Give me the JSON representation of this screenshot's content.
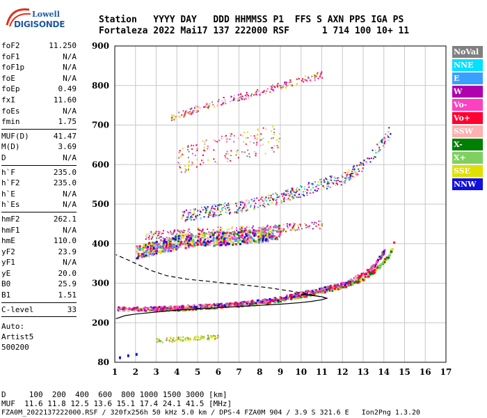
{
  "logo": {
    "top": "Lowell",
    "bottom": "DIGISONDE"
  },
  "header": {
    "line1": "Station   YYYY DAY   DDD HHMMSS P1  FFS S AXN PPS IGA PS",
    "line2": "Fortaleza 2022 Mai17 137 222000 RSF      1 714 100 10+ 11"
  },
  "params": {
    "g1": [
      {
        "k": "foF2",
        "v": "11.250"
      },
      {
        "k": "foF1",
        "v": "N/A"
      },
      {
        "k": "foF1p",
        "v": "N/A"
      },
      {
        "k": "foE",
        "v": "N/A"
      },
      {
        "k": "foEp",
        "v": "0.49"
      },
      {
        "k": "fxI",
        "v": "11.60"
      },
      {
        "k": "foEs",
        "v": "N/A"
      },
      {
        "k": "fmin",
        "v": "1.75"
      }
    ],
    "g2": [
      {
        "k": "MUF(D)",
        "v": "41.47"
      },
      {
        "k": "M(D)",
        "v": "3.69"
      },
      {
        "k": "D",
        "v": "N/A"
      }
    ],
    "g3": [
      {
        "k": "h`F",
        "v": "235.0"
      },
      {
        "k": "h`F2",
        "v": "235.0"
      },
      {
        "k": "h`E",
        "v": "N/A"
      },
      {
        "k": "h`Es",
        "v": "N/A"
      }
    ],
    "g4": [
      {
        "k": "hmF2",
        "v": "262.1"
      },
      {
        "k": "hmF1",
        "v": "N/A"
      },
      {
        "k": "hmE",
        "v": "110.0"
      },
      {
        "k": "yF2",
        "v": "23.9"
      },
      {
        "k": "yF1",
        "v": "N/A"
      },
      {
        "k": "yE",
        "v": "20.0"
      },
      {
        "k": "B0",
        "v": "25.9"
      },
      {
        "k": "B1",
        "v": "1.51"
      }
    ],
    "g5": [
      {
        "k": "C-level",
        "v": "33"
      }
    ],
    "auto": [
      "Auto:",
      "Artist5",
      "500200"
    ]
  },
  "legend": [
    {
      "label": "NoVal",
      "color": "#808080"
    },
    {
      "label": "NNE",
      "color": "#00e0ff"
    },
    {
      "label": "E",
      "color": "#3aa0ff"
    },
    {
      "label": "W",
      "color": "#b000b0"
    },
    {
      "label": "Vo-",
      "color": "#ff40c0"
    },
    {
      "label": "Vo+",
      "color": "#ff0030"
    },
    {
      "label": "SSW",
      "color": "#ffb0b0"
    },
    {
      "label": "X-",
      "color": "#008000"
    },
    {
      "label": "X+",
      "color": "#80d060"
    },
    {
      "label": "SSE",
      "color": "#e0e000"
    },
    {
      "label": "NNW",
      "color": "#1010e0"
    }
  ],
  "chart_data": {
    "type": "scatter",
    "x_ticks": [
      "1",
      "2",
      "3",
      "4",
      "5",
      "6",
      "7",
      "8",
      "9",
      "10",
      "11",
      "12",
      "13",
      "14",
      "15",
      "16",
      "17"
    ],
    "y_ticks": [
      "80",
      "200",
      "300",
      "400",
      "500",
      "600",
      "700",
      "800",
      "900"
    ],
    "xlim": [
      1,
      17
    ],
    "ylim": [
      80,
      900
    ],
    "grid": true,
    "trace_o": [
      [
        1.1,
        237
      ],
      [
        2,
        237
      ],
      [
        3,
        238
      ],
      [
        4,
        240
      ],
      [
        5,
        243
      ],
      [
        6,
        246
      ],
      [
        7,
        250
      ],
      [
        8,
        256
      ],
      [
        9,
        264
      ],
      [
        10,
        276
      ],
      [
        11,
        287
      ],
      [
        12,
        300
      ],
      [
        13,
        325
      ],
      [
        13.5,
        347
      ],
      [
        14,
        385
      ]
    ],
    "trace_x": [
      [
        2.1,
        235
      ],
      [
        3,
        236
      ],
      [
        4,
        237
      ],
      [
        5,
        240
      ],
      [
        6,
        243
      ],
      [
        7,
        247
      ],
      [
        8,
        252
      ],
      [
        9,
        260
      ],
      [
        10,
        270
      ],
      [
        11,
        282
      ],
      [
        12,
        294
      ],
      [
        13,
        313
      ],
      [
        13.6,
        337
      ],
      [
        14.2,
        370
      ],
      [
        14.5,
        410
      ]
    ],
    "echo2_o": [
      [
        2,
        380
      ],
      [
        3,
        392
      ],
      [
        4,
        405
      ],
      [
        5,
        412
      ],
      [
        6,
        414
      ],
      [
        7,
        418
      ],
      [
        8,
        423
      ],
      [
        9,
        432
      ]
    ],
    "echo2_x": [
      [
        4.2,
        470
      ],
      [
        5,
        478
      ],
      [
        6,
        488
      ],
      [
        7,
        495
      ],
      [
        8,
        505
      ],
      [
        9,
        518
      ],
      [
        10,
        535
      ],
      [
        11,
        552
      ],
      [
        12,
        566
      ],
      [
        13,
        600
      ],
      [
        14,
        660
      ],
      [
        14.3,
        690
      ]
    ],
    "echo3": [
      [
        4,
        612
      ],
      [
        5,
        628
      ],
      [
        6,
        640
      ],
      [
        7,
        650
      ],
      [
        8,
        660
      ],
      [
        9,
        670
      ]
    ],
    "echo4": [
      [
        3.7,
        718
      ],
      [
        5,
        745
      ],
      [
        6,
        760
      ],
      [
        7,
        772
      ],
      [
        8,
        785
      ],
      [
        9,
        800
      ],
      [
        10,
        815
      ],
      [
        11,
        830
      ]
    ],
    "spread": [
      [
        2.4,
        422
      ],
      [
        4,
        428
      ],
      [
        5,
        432
      ],
      [
        6,
        434
      ],
      [
        7,
        436
      ],
      [
        8,
        438
      ],
      [
        9,
        440
      ],
      [
        10,
        446
      ],
      [
        11,
        450
      ]
    ],
    "es": [
      [
        3,
        148
      ],
      [
        4,
        152
      ],
      [
        5,
        155
      ],
      [
        6,
        158
      ]
    ],
    "low": [
      [
        1.2,
        98
      ],
      [
        1.6,
        104
      ],
      [
        2,
        108
      ]
    ],
    "profile_solid": [
      [
        1.05,
        210
      ],
      [
        1.5,
        218
      ],
      [
        2,
        222
      ],
      [
        3,
        227
      ],
      [
        4,
        232
      ],
      [
        5,
        235
      ],
      [
        6,
        238
      ],
      [
        7,
        241
      ],
      [
        8,
        244
      ],
      [
        9,
        247
      ],
      [
        10,
        251
      ],
      [
        10.5,
        254
      ],
      [
        11,
        258
      ],
      [
        11.25,
        262
      ],
      [
        11,
        266
      ],
      [
        10.5,
        269
      ],
      [
        10,
        272
      ]
    ],
    "profile_dashed": [
      [
        11.25,
        262
      ],
      [
        10.5,
        271
      ],
      [
        9.5,
        280
      ],
      [
        8.5,
        288
      ],
      [
        7.5,
        294
      ],
      [
        6.5,
        299
      ],
      [
        5.5,
        305
      ],
      [
        4.5,
        310
      ],
      [
        3.5,
        319
      ],
      [
        2.7,
        333
      ],
      [
        2,
        350
      ],
      [
        1.5,
        362
      ],
      [
        1.05,
        372
      ]
    ]
  },
  "footer": {
    "d_row": "D     100  200  400  600  800 1000 1500 3000 [km]",
    "muf_row": "MUF  11.6 11.8 12.5 13.6 15.1 17.4 24.1 41.5 [MHz]",
    "status_row": "FZA0M_2022137222000.RSF / 320fx256h 50 kHz 5.0 km / DPS-4 FZA0M 904 / 3.9 S 321.6 E   Ion2Png 1.3.20"
  }
}
